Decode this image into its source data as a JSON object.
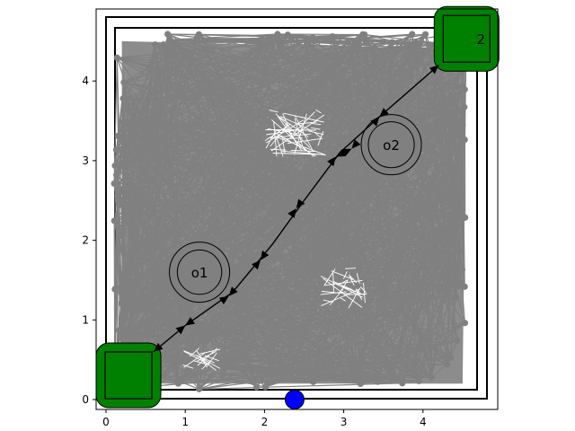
{
  "plot": {
    "x_ticks": [
      "0",
      "1",
      "2",
      "3",
      "4"
    ],
    "y_ticks": [
      "0",
      "1",
      "2",
      "3",
      "4"
    ],
    "x_range": [
      -0.12,
      4.9
    ],
    "y_range": [
      -0.1,
      4.9
    ]
  },
  "obstacles": [
    {
      "label": "o1",
      "x": 1.18,
      "y": 1.6,
      "r_inner": 0.28,
      "r_outer": 0.38
    },
    {
      "label": "o2",
      "x": 3.6,
      "y": 3.2,
      "r_inner": 0.29,
      "r_outer": 0.38
    }
  ],
  "goals": [
    {
      "label": "2",
      "x": 4.55,
      "y": 4.53
    }
  ],
  "agent": {
    "x": 2.38,
    "y": 0.0,
    "color": "#0000ff"
  },
  "path": [
    [
      0.6,
      0.6
    ],
    [
      1.0,
      0.93
    ],
    [
      1.6,
      1.35
    ],
    [
      2.1,
      1.95
    ],
    [
      2.5,
      2.5
    ],
    [
      2.95,
      3.1
    ],
    [
      3.45,
      3.55
    ],
    [
      4.2,
      4.2
    ]
  ],
  "path_arrows": [
    [
      0.6,
      0.6
    ],
    [
      1.0,
      0.93
    ],
    [
      1.55,
      1.3
    ],
    [
      1.95,
      1.75
    ],
    [
      2.4,
      2.4
    ],
    [
      2.9,
      3.05
    ],
    [
      3.1,
      3.15
    ],
    [
      3.45,
      3.55
    ],
    [
      4.2,
      4.2
    ]
  ],
  "colors": {
    "graph": "#808080",
    "goal": "#008000",
    "agent": "#0000ff",
    "path": "#000000"
  }
}
